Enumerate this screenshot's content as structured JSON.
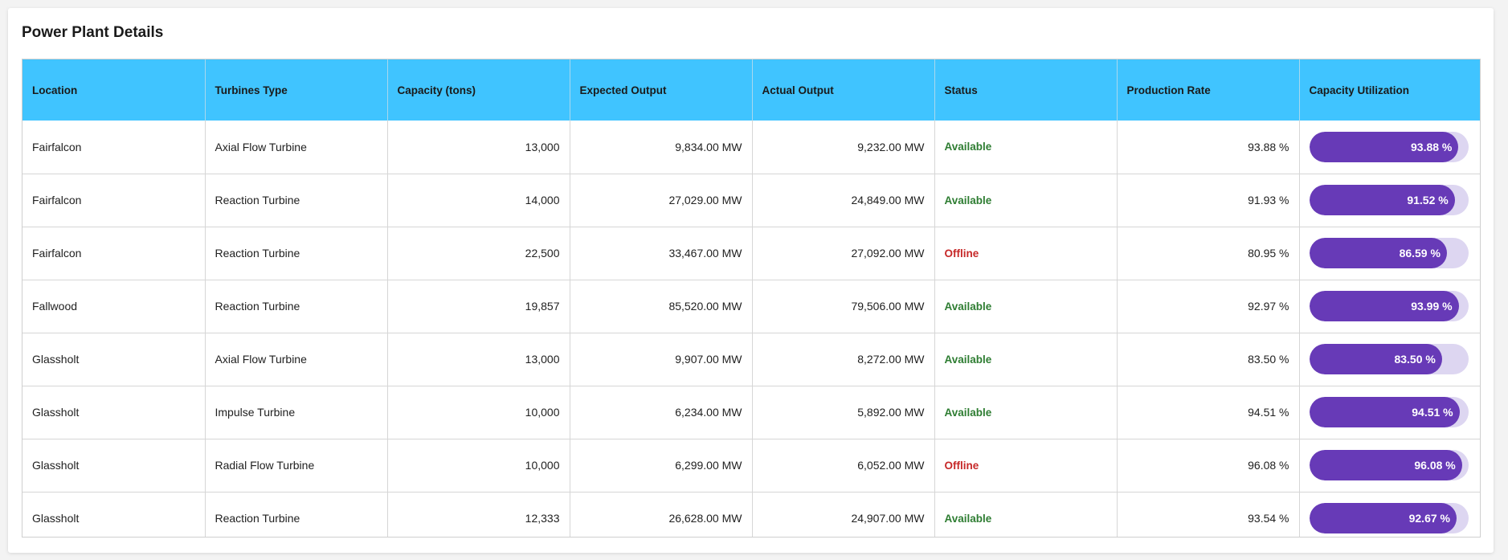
{
  "title": "Power Plant Details",
  "colors": {
    "header_bg": "#40c4ff",
    "status_available": "#2e7d32",
    "status_offline": "#c62828",
    "bar_fill": "#673ab7",
    "bar_track": "#ddd6f1"
  },
  "columns": [
    "Location",
    "Turbines Type",
    "Capacity (tons)",
    "Expected Output",
    "Actual Output",
    "Status",
    "Production Rate",
    "Capacity Utilization"
  ],
  "rows": [
    {
      "location": "Fairfalcon",
      "turbine_type": "Axial Flow Turbine",
      "capacity": "13,000",
      "expected_output": "9,834.00 MW",
      "actual_output": "9,232.00 MW",
      "status": "Available",
      "production_rate": "93.88 %",
      "utilization_label": "93.88 %",
      "utilization": 93.88
    },
    {
      "location": "Fairfalcon",
      "turbine_type": "Reaction Turbine",
      "capacity": "14,000",
      "expected_output": "27,029.00 MW",
      "actual_output": "24,849.00 MW",
      "status": "Available",
      "production_rate": "91.93 %",
      "utilization_label": "91.52 %",
      "utilization": 91.52
    },
    {
      "location": "Fairfalcon",
      "turbine_type": "Reaction Turbine",
      "capacity": "22,500",
      "expected_output": "33,467.00 MW",
      "actual_output": "27,092.00 MW",
      "status": "Offline",
      "production_rate": "80.95 %",
      "utilization_label": "86.59 %",
      "utilization": 86.59
    },
    {
      "location": "Fallwood",
      "turbine_type": "Reaction Turbine",
      "capacity": "19,857",
      "expected_output": "85,520.00 MW",
      "actual_output": "79,506.00 MW",
      "status": "Available",
      "production_rate": "92.97 %",
      "utilization_label": "93.99 %",
      "utilization": 93.99
    },
    {
      "location": "Glassholt",
      "turbine_type": "Axial Flow Turbine",
      "capacity": "13,000",
      "expected_output": "9,907.00 MW",
      "actual_output": "8,272.00 MW",
      "status": "Available",
      "production_rate": "83.50 %",
      "utilization_label": "83.50 %",
      "utilization": 83.5
    },
    {
      "location": "Glassholt",
      "turbine_type": "Impulse Turbine",
      "capacity": "10,000",
      "expected_output": "6,234.00 MW",
      "actual_output": "5,892.00 MW",
      "status": "Available",
      "production_rate": "94.51 %",
      "utilization_label": "94.51 %",
      "utilization": 94.51
    },
    {
      "location": "Glassholt",
      "turbine_type": "Radial Flow Turbine",
      "capacity": "10,000",
      "expected_output": "6,299.00 MW",
      "actual_output": "6,052.00 MW",
      "status": "Offline",
      "production_rate": "96.08 %",
      "utilization_label": "96.08 %",
      "utilization": 96.08
    },
    {
      "location": "Glassholt",
      "turbine_type": "Reaction Turbine",
      "capacity": "12,333",
      "expected_output": "26,628.00 MW",
      "actual_output": "24,907.00 MW",
      "status": "Available",
      "production_rate": "93.54 %",
      "utilization_label": "92.67 %",
      "utilization": 92.67
    }
  ]
}
